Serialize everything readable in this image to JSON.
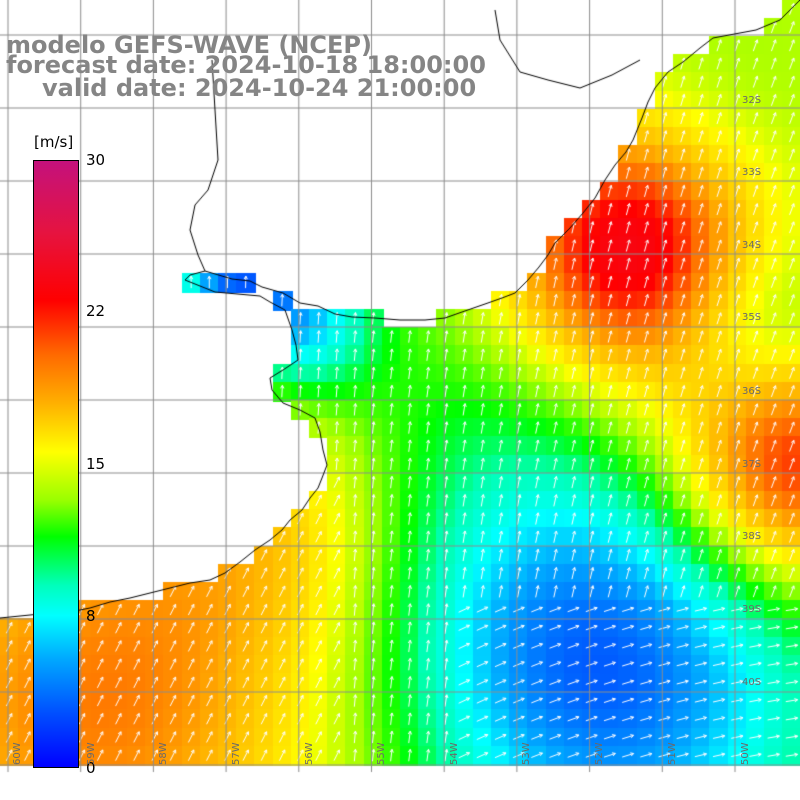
{
  "map": {
    "title_line_1": "modelo GEFS-WAVE (NCEP)",
    "title_line_2": "forecast date: 2024-10-18 18:00:00",
    "title_line_3": "valid date: 2024-10-24 21:00:00",
    "variable": "wind speed",
    "colors": {
      "land": "#ffffff",
      "grid": "#8c8c8c",
      "coast": "#000000",
      "arrows": "#ffffff"
    }
  },
  "colorbar": {
    "unit_label": "[m/s]",
    "min": 0,
    "max": 30,
    "tick_labels": [
      "30",
      "22",
      "15",
      "8",
      "0"
    ]
  },
  "lat_labels": [
    "32S",
    "33S",
    "34S",
    "35S",
    "36S",
    "37S",
    "38S",
    "39S",
    "40S"
  ],
  "lon_labels": [
    "60W",
    "59W",
    "58W",
    "57W",
    "56W",
    "55W",
    "54W",
    "53W",
    "52W",
    "51W",
    "50W"
  ]
}
